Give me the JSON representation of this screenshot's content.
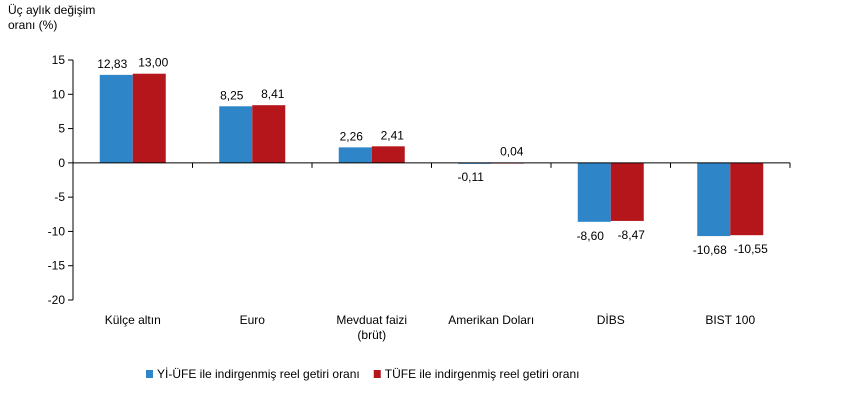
{
  "chart_data": {
    "type": "bar",
    "ylabel": [
      "Üç aylık değişim",
      "oranı (%)"
    ],
    "ylim": [
      -20,
      15
    ],
    "yticks": [
      15,
      10,
      5,
      0,
      -5,
      -10,
      -15,
      -20
    ],
    "categories": [
      [
        "Külçe altın"
      ],
      [
        "Euro"
      ],
      [
        "Mevduat faizi",
        "(brüt)"
      ],
      [
        "Amerikan Doları"
      ],
      [
        "DİBS"
      ],
      [
        "BIST 100"
      ]
    ],
    "series": [
      {
        "name": "Yİ-ÜFE ile indirgenmiş reel getiri oranı",
        "color": "#2E86C8",
        "values": [
          12.83,
          8.25,
          2.26,
          -0.11,
          -8.6,
          -10.68
        ],
        "labels": [
          "12,83",
          "8,25",
          "2,26",
          "-0,11",
          "-8,60",
          "-10,68"
        ]
      },
      {
        "name": "TÜFE ile indirgenmiş reel getiri oranı",
        "color": "#B5161B",
        "values": [
          13.0,
          8.41,
          2.41,
          0.04,
          -8.47,
          -10.55
        ],
        "labels": [
          "13,00",
          "8,41",
          "2,41",
          "0,04",
          "-8,47",
          "-10,55"
        ]
      }
    ],
    "legend_position": "bottom",
    "grid": false
  }
}
